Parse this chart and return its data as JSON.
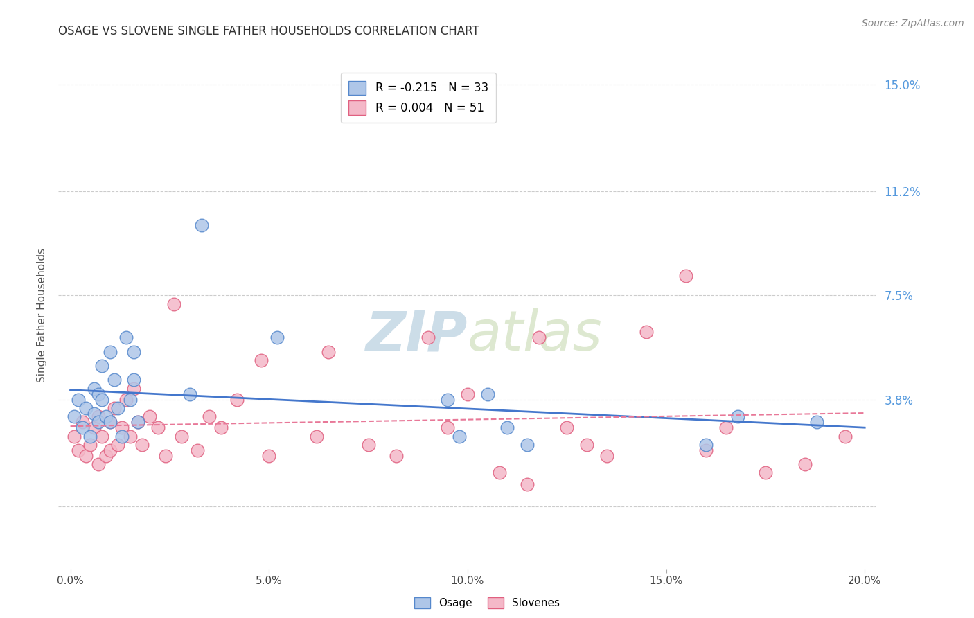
{
  "title": "OSAGE VS SLOVENE SINGLE FATHER HOUSEHOLDS CORRELATION CHART",
  "source": "Source: ZipAtlas.com",
  "ylabel": "Single Father Households",
  "xlabel_ticks": [
    0.0,
    0.05,
    0.1,
    0.15,
    0.2
  ],
  "xlabel_labels": [
    "0.0%",
    "5.0%",
    "10.0%",
    "15.0%",
    "20.0%"
  ],
  "ytick_values": [
    0.0,
    0.038,
    0.075,
    0.112,
    0.15
  ],
  "ytick_labels": [
    "",
    "3.8%",
    "7.5%",
    "11.2%",
    "15.0%"
  ],
  "xlim": [
    -0.003,
    0.203
  ],
  "ylim": [
    -0.022,
    0.158
  ],
  "osage_color": "#aec6e8",
  "slovene_color": "#f4b8c8",
  "osage_edge_color": "#5588cc",
  "slovene_edge_color": "#e06080",
  "trend_osage_color": "#4477cc",
  "trend_slovene_color": "#e87898",
  "background_color": "#ffffff",
  "grid_color": "#cccccc",
  "title_color": "#333333",
  "axis_label_color": "#555555",
  "ytick_label_color": "#5599dd",
  "watermark_text": "ZIPatlas",
  "watermark_color": "#dce8f0",
  "legend_label1": "R = -0.215   N = 33",
  "legend_label2": "R = 0.004   N = 51",
  "osage_x": [
    0.001,
    0.002,
    0.003,
    0.004,
    0.005,
    0.006,
    0.006,
    0.007,
    0.007,
    0.008,
    0.008,
    0.009,
    0.01,
    0.01,
    0.011,
    0.012,
    0.013,
    0.014,
    0.015,
    0.016,
    0.016,
    0.017,
    0.03,
    0.033,
    0.052,
    0.095,
    0.098,
    0.105,
    0.11,
    0.115,
    0.16,
    0.168,
    0.188
  ],
  "osage_y": [
    0.032,
    0.038,
    0.028,
    0.035,
    0.025,
    0.042,
    0.033,
    0.04,
    0.03,
    0.038,
    0.05,
    0.032,
    0.055,
    0.03,
    0.045,
    0.035,
    0.025,
    0.06,
    0.038,
    0.045,
    0.055,
    0.03,
    0.04,
    0.1,
    0.06,
    0.038,
    0.025,
    0.04,
    0.028,
    0.022,
    0.022,
    0.032,
    0.03
  ],
  "slovene_x": [
    0.001,
    0.002,
    0.003,
    0.004,
    0.005,
    0.006,
    0.007,
    0.007,
    0.008,
    0.009,
    0.01,
    0.01,
    0.011,
    0.012,
    0.013,
    0.014,
    0.015,
    0.016,
    0.017,
    0.018,
    0.02,
    0.022,
    0.024,
    0.026,
    0.028,
    0.032,
    0.035,
    0.038,
    0.042,
    0.048,
    0.05,
    0.062,
    0.065,
    0.075,
    0.082,
    0.09,
    0.095,
    0.1,
    0.108,
    0.115,
    0.118,
    0.125,
    0.13,
    0.135,
    0.145,
    0.155,
    0.16,
    0.165,
    0.175,
    0.185,
    0.195
  ],
  "slovene_y": [
    0.025,
    0.02,
    0.03,
    0.018,
    0.022,
    0.028,
    0.015,
    0.032,
    0.025,
    0.018,
    0.03,
    0.02,
    0.035,
    0.022,
    0.028,
    0.038,
    0.025,
    0.042,
    0.03,
    0.022,
    0.032,
    0.028,
    0.018,
    0.072,
    0.025,
    0.02,
    0.032,
    0.028,
    0.038,
    0.052,
    0.018,
    0.025,
    0.055,
    0.022,
    0.018,
    0.06,
    0.028,
    0.04,
    0.012,
    0.008,
    0.06,
    0.028,
    0.022,
    0.018,
    0.062,
    0.082,
    0.02,
    0.028,
    0.012,
    0.015,
    0.025
  ]
}
